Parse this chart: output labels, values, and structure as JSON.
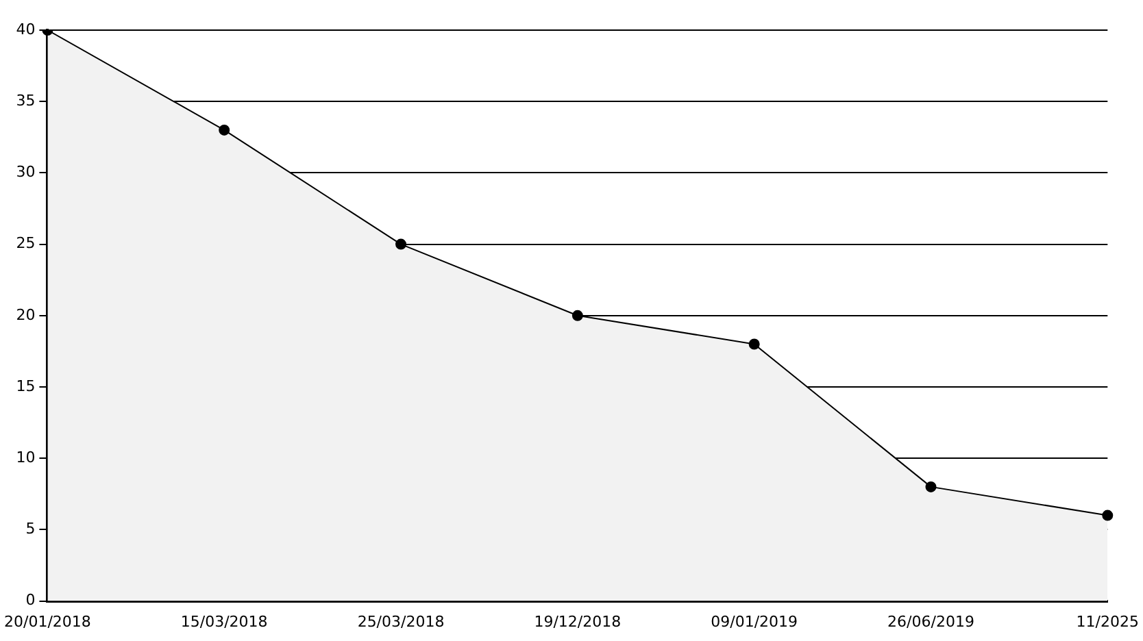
{
  "chart_data": {
    "type": "area",
    "categories": [
      "20/01/2018",
      "15/03/2018",
      "25/03/2018",
      "19/12/2018",
      "09/01/2019",
      "26/06/2019",
      "11/2025"
    ],
    "series": [
      {
        "color": "#000000",
        "values": [
          40,
          33,
          25,
          20,
          18,
          8,
          6
        ]
      }
    ],
    "ylim": [
      0,
      40
    ],
    "yticks": [
      0,
      5,
      10,
      15,
      20,
      25,
      30,
      35,
      40
    ],
    "grid": "y",
    "legend": false,
    "marker": "circle",
    "line_style": "solid"
  }
}
